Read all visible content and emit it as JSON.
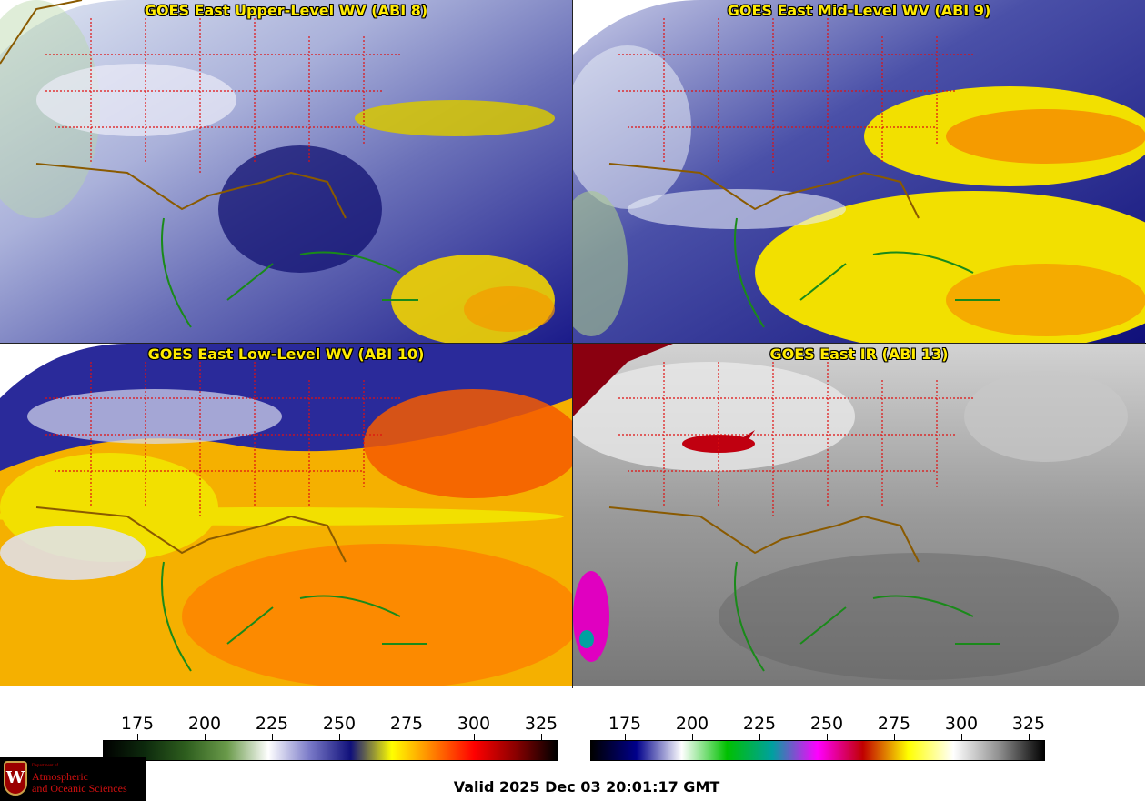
{
  "panels": [
    {
      "title": "GOES East Upper-Level WV (ABI 8)"
    },
    {
      "title": "GOES East Mid-Level WV (ABI 9)"
    },
    {
      "title": "GOES East Low-Level WV (ABI 10)"
    },
    {
      "title": "GOES East IR (ABI 13)"
    }
  ],
  "colorbar_wv": {
    "ticks": [
      "175",
      "200",
      "225",
      "250",
      "275",
      "300",
      "325"
    ],
    "colors": [
      "#000000",
      "#0d2a0d",
      "#2e5e1e",
      "#6a9a4a",
      "#ffffff",
      "#7a7ac8",
      "#10107a",
      "#ffff00",
      "#ff8000",
      "#ff0000",
      "#8b0000",
      "#000000"
    ]
  },
  "colorbar_ir": {
    "ticks": [
      "175",
      "200",
      "225",
      "250",
      "275",
      "300",
      "325"
    ],
    "colors": [
      "#000000",
      "#00008b",
      "#ffffff",
      "#00c000",
      "#00a0a0",
      "#ff00ff",
      "#c00000",
      "#ffff00",
      "#ffffff",
      "#909090",
      "#000000"
    ]
  },
  "valid_time": "Valid 2025 Dec 03 20:01:17 GMT",
  "logo": {
    "line1": "Atmospheric",
    "line2": "and Oceanic Sciences",
    "dept": "Department of",
    "seal_letter": "W"
  }
}
